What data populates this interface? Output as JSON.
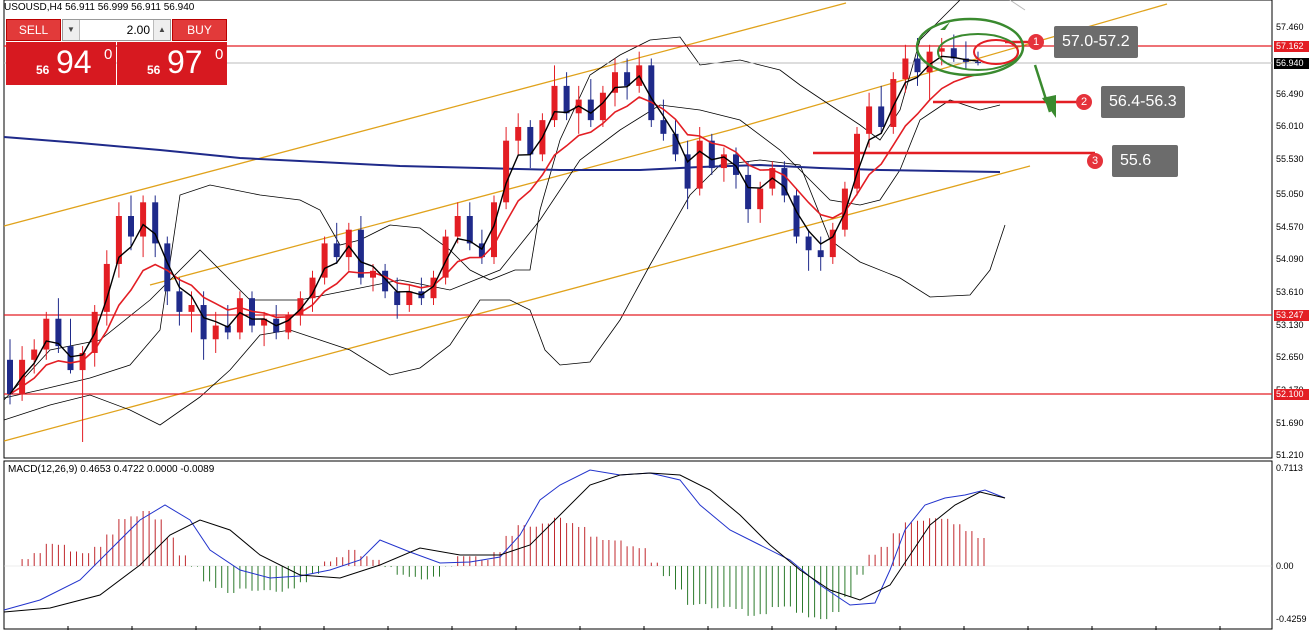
{
  "header": {
    "text": "USOUSD,H4  56.911 56.999 56.911 56.940"
  },
  "macd_header": {
    "text": "MACD(12,26,9) 0.4653 0.4722 0.0000 -0.0089"
  },
  "trade_panel": {
    "sell_label": "SELL",
    "buy_label": "BUY",
    "volume": "2.00",
    "sell_small": "56",
    "sell_big": "94",
    "sell_sup": "0",
    "buy_small": "56",
    "buy_big": "97",
    "buy_sup": "0"
  },
  "callouts": [
    {
      "num": "1",
      "text": "57.0-57.2"
    },
    {
      "num": "2",
      "text": "56.4-56.3"
    },
    {
      "num": "3",
      "text": "55.6"
    }
  ],
  "price_axis": {
    "labels": [
      "57.460",
      "56.490",
      "56.010",
      "55.530",
      "55.050",
      "54.570",
      "54.090",
      "53.610",
      "53.130",
      "52.650",
      "52.170",
      "51.690",
      "51.210"
    ],
    "marked_levels": [
      {
        "value": "57.162",
        "color": "#e31e24"
      },
      {
        "value": "56.940",
        "color": "#000000"
      },
      {
        "value": "53.247",
        "color": "#e31e24"
      },
      {
        "value": "52.100",
        "color": "#e31e24"
      }
    ]
  },
  "macd_axis": {
    "labels": [
      "0.7113",
      "0.00",
      "-0.4259"
    ]
  },
  "colors": {
    "bull": "#e31e24",
    "bear": "#1f2a8a",
    "channel": "#e0a21b",
    "ma_slow": "#1f2a8a",
    "level": "#e31e24",
    "signal_up": "#c0282d",
    "signal_down": "#2c7a2c",
    "macd_line": "#2233cc",
    "green_marker": "#3a8a2f"
  },
  "chart_data": {
    "type": "candlestick",
    "symbol": "USOUSD",
    "timeframe": "H4",
    "ylim": [
      51.21,
      57.46
    ],
    "candles": [
      [
        52.6,
        52.9,
        51.95,
        52.1
      ],
      [
        52.1,
        52.8,
        52.0,
        52.6
      ],
      [
        52.6,
        52.9,
        52.4,
        52.75
      ],
      [
        52.75,
        53.3,
        52.6,
        53.2
      ],
      [
        53.2,
        53.5,
        52.7,
        52.8
      ],
      [
        52.8,
        53.2,
        52.4,
        52.45
      ],
      [
        52.45,
        52.8,
        51.4,
        52.7
      ],
      [
        52.7,
        53.4,
        52.5,
        53.3
      ],
      [
        53.3,
        54.2,
        53.1,
        54.0
      ],
      [
        54.0,
        54.9,
        53.8,
        54.7
      ],
      [
        54.7,
        55.0,
        54.2,
        54.4
      ],
      [
        54.4,
        55.0,
        54.1,
        54.9
      ],
      [
        54.9,
        55.0,
        54.1,
        54.3
      ],
      [
        54.3,
        54.4,
        53.4,
        53.6
      ],
      [
        53.6,
        53.8,
        53.1,
        53.3
      ],
      [
        53.3,
        53.6,
        53.0,
        53.4
      ],
      [
        53.4,
        53.6,
        52.6,
        52.9
      ],
      [
        52.9,
        53.3,
        52.7,
        53.1
      ],
      [
        53.1,
        53.4,
        52.9,
        53.0
      ],
      [
        53.0,
        53.6,
        52.9,
        53.5
      ],
      [
        53.5,
        53.6,
        53.0,
        53.1
      ],
      [
        53.1,
        53.3,
        52.8,
        53.2
      ],
      [
        53.2,
        53.4,
        52.9,
        53.0
      ],
      [
        53.0,
        53.3,
        52.9,
        53.25
      ],
      [
        53.25,
        53.6,
        53.1,
        53.5
      ],
      [
        53.5,
        53.9,
        53.3,
        53.8
      ],
      [
        53.8,
        54.4,
        53.7,
        54.3
      ],
      [
        54.3,
        54.6,
        54.0,
        54.1
      ],
      [
        54.1,
        54.6,
        53.9,
        54.5
      ],
      [
        54.5,
        54.7,
        53.7,
        53.8
      ],
      [
        53.8,
        54.0,
        53.6,
        53.9
      ],
      [
        53.9,
        54.0,
        53.5,
        53.6
      ],
      [
        53.6,
        53.8,
        53.2,
        53.4
      ],
      [
        53.4,
        53.7,
        53.3,
        53.6
      ],
      [
        53.6,
        53.8,
        53.4,
        53.5
      ],
      [
        53.5,
        53.9,
        53.4,
        53.8
      ],
      [
        53.8,
        54.5,
        53.7,
        54.4
      ],
      [
        54.4,
        54.9,
        54.3,
        54.7
      ],
      [
        54.7,
        54.9,
        54.2,
        54.3
      ],
      [
        54.3,
        54.5,
        54.0,
        54.1
      ],
      [
        54.1,
        55.0,
        54.0,
        54.9
      ],
      [
        54.9,
        56.0,
        54.8,
        55.8
      ],
      [
        55.8,
        56.2,
        55.6,
        56.0
      ],
      [
        56.0,
        56.1,
        55.4,
        55.6
      ],
      [
        55.6,
        56.2,
        55.5,
        56.1
      ],
      [
        56.1,
        56.9,
        56.0,
        56.6
      ],
      [
        56.6,
        56.8,
        56.1,
        56.2
      ],
      [
        56.2,
        56.6,
        55.9,
        56.4
      ],
      [
        56.4,
        56.7,
        56.0,
        56.1
      ],
      [
        56.1,
        56.6,
        56.0,
        56.5
      ],
      [
        56.5,
        57.0,
        56.3,
        56.8
      ],
      [
        56.8,
        57.0,
        56.4,
        56.6
      ],
      [
        56.6,
        57.1,
        56.5,
        56.9
      ],
      [
        56.9,
        57.0,
        56.0,
        56.1
      ],
      [
        56.1,
        56.4,
        55.8,
        55.9
      ],
      [
        55.9,
        56.1,
        55.5,
        55.6
      ],
      [
        55.6,
        55.8,
        54.8,
        55.1
      ],
      [
        55.1,
        56.0,
        55.0,
        55.8
      ],
      [
        55.8,
        55.9,
        55.3,
        55.4
      ],
      [
        55.4,
        55.7,
        55.2,
        55.6
      ],
      [
        55.6,
        55.7,
        55.1,
        55.3
      ],
      [
        55.3,
        55.5,
        54.6,
        54.8
      ],
      [
        54.8,
        55.2,
        54.6,
        55.1
      ],
      [
        55.1,
        55.5,
        55.0,
        55.4
      ],
      [
        55.4,
        55.5,
        54.9,
        55.0
      ],
      [
        55.0,
        55.1,
        54.3,
        54.4
      ],
      [
        54.4,
        54.5,
        53.9,
        54.2
      ],
      [
        54.2,
        54.4,
        53.9,
        54.1
      ],
      [
        54.1,
        54.6,
        54.0,
        54.5
      ],
      [
        54.5,
        55.2,
        54.4,
        55.1
      ],
      [
        55.1,
        56.0,
        55.0,
        55.9
      ],
      [
        55.9,
        56.5,
        55.7,
        56.3
      ],
      [
        56.3,
        56.6,
        55.9,
        56.0
      ],
      [
        56.0,
        56.8,
        55.9,
        56.7
      ],
      [
        56.7,
        57.2,
        56.5,
        57.0
      ],
      [
        57.0,
        57.3,
        56.6,
        56.8
      ],
      [
        56.8,
        57.2,
        56.4,
        57.1
      ],
      [
        57.1,
        57.3,
        56.9,
        57.15
      ],
      [
        57.15,
        57.35,
        56.95,
        57.0
      ],
      [
        57.0,
        57.25,
        56.85,
        56.95
      ],
      [
        56.95,
        57.1,
        56.9,
        56.94
      ]
    ]
  }
}
